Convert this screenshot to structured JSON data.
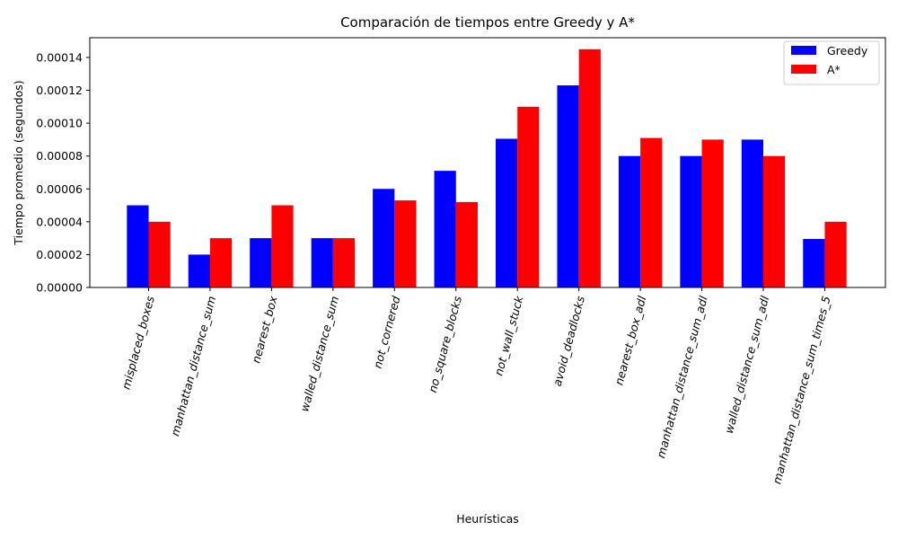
{
  "chart_data": {
    "type": "bar",
    "title": "Comparación de tiempos entre Greedy y A*",
    "xlabel": "Heurísticas",
    "ylabel": "Tiempo promedio (segundos)",
    "categories": [
      "misplaced_boxes",
      "manhattan_distance_sum",
      "nearest_box",
      "walled_distance_sum",
      "not_cornered",
      "no_square_blocks",
      "not_wall_stuck",
      "avoid_deadlocks",
      "nearest_box_adl",
      "manhattan_distance_sum_adl",
      "walled_distance_sum_adl",
      "manhattan_distance_sum_times_5"
    ],
    "series": [
      {
        "name": "Greedy",
        "color": "#0000ff",
        "values": [
          5e-05,
          2e-05,
          3e-05,
          3e-05,
          6e-05,
          7.1e-05,
          9.05e-05,
          0.000123,
          8e-05,
          8e-05,
          9e-05,
          2.95e-05
        ]
      },
      {
        "name": "A*",
        "color": "#ff0000",
        "values": [
          4e-05,
          3e-05,
          5e-05,
          3e-05,
          5.3e-05,
          5.2e-05,
          0.00011,
          0.000145,
          9.1e-05,
          9e-05,
          8e-05,
          4e-05
        ]
      }
    ],
    "ylim": [
      0,
      0.000152
    ],
    "yticks": [
      0,
      2e-05,
      4e-05,
      6e-05,
      8e-05,
      0.0001,
      0.00012,
      0.00014
    ],
    "ytick_labels": [
      "0.00000",
      "0.00002",
      "0.00004",
      "0.00006",
      "0.00008",
      "0.00010",
      "0.00012",
      "0.00014"
    ],
    "xtick_rotation_deg": 75,
    "grid": false,
    "legend_position": "top-right"
  }
}
